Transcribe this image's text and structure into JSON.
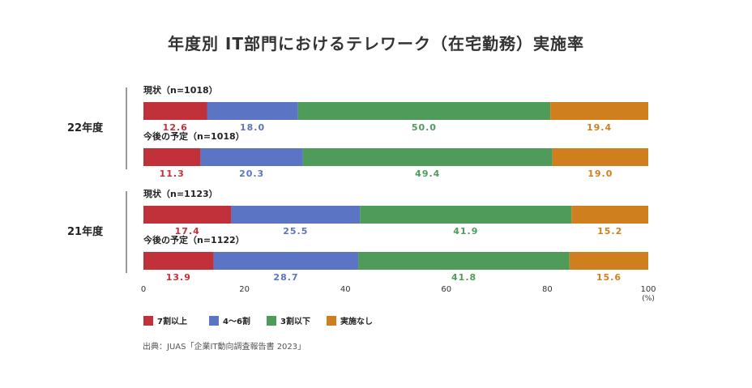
{
  "chart_data": {
    "type": "bar",
    "orientation": "horizontal",
    "stacked": true,
    "title": "年度別 IT部門におけるテレワーク（在宅勤務）実施率",
    "groups": [
      {
        "label": "22年度",
        "rows": [
          {
            "label": "現状（n=1018）",
            "values": [
              12.6,
              18.0,
              50.0,
              19.4
            ]
          },
          {
            "label": "今後の予定（n=1018）",
            "values": [
              11.3,
              20.3,
              49.4,
              19.0
            ]
          }
        ]
      },
      {
        "label": "21年度",
        "rows": [
          {
            "label": "現状（n=1123）",
            "values": [
              17.4,
              25.5,
              41.9,
              15.2
            ]
          },
          {
            "label": "今後の予定（n=1122）",
            "values": [
              13.9,
              28.7,
              41.8,
              15.6
            ]
          }
        ]
      }
    ],
    "series": [
      {
        "name": "7割以上",
        "color": "#c0313a"
      },
      {
        "name": "4～6割",
        "color": "#5b74c4"
      },
      {
        "name": "3割以下",
        "color": "#4f9c5a"
      },
      {
        "name": "実施なし",
        "color": "#d07f1e"
      }
    ],
    "xlim": [
      0,
      100
    ],
    "xticks": [
      "0",
      "20",
      "40",
      "60",
      "80",
      "100"
    ],
    "xunit": "(%)",
    "grid": false,
    "legend": "bottom"
  },
  "source": "出典：JUAS「企業IT動向調査報告書 2023」"
}
